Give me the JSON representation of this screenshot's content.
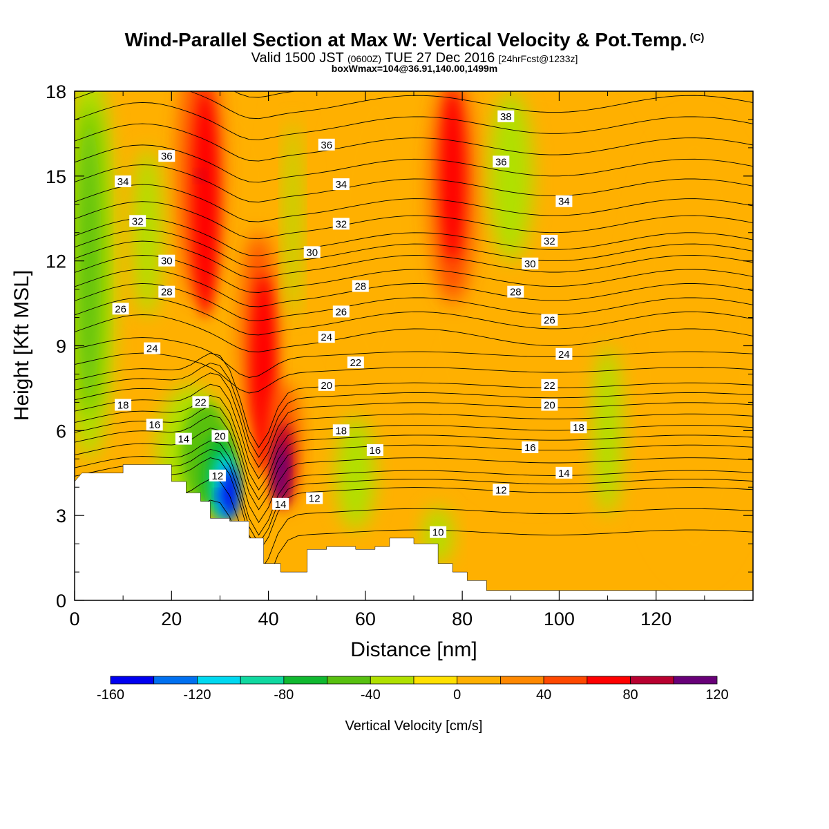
{
  "title": {
    "main": "Wind-Parallel Section at Max W: Vertical Velocity & Pot.Temp.",
    "copyright": "(C)",
    "valid_prefix": "Valid 1500 JST",
    "valid_utc": "(0600Z)",
    "valid_date": "TUE 27 Dec 2016",
    "forecast": "[24hrFcst@1233z]",
    "box_info": "boxWmax=104@36.91,140.00,1499m"
  },
  "chart_data": {
    "type": "heatmap",
    "xlabel": "Distance [nm]",
    "ylabel": "Height [Kft MSL]",
    "xlim": [
      0,
      140
    ],
    "ylim": [
      0,
      18
    ],
    "x_ticks": [
      0,
      20,
      40,
      60,
      80,
      100,
      120
    ],
    "x_tick_labels": [
      "0",
      "20",
      "40",
      "60",
      "80",
      "100",
      "120"
    ],
    "y_ticks": [
      0,
      3,
      6,
      9,
      12,
      15,
      18
    ],
    "y_tick_labels": [
      "0",
      "3",
      "6",
      "9",
      "12",
      "15",
      "18"
    ],
    "colorbar": {
      "label": "Vertical Velocity [cm/s]",
      "levels": [
        -160,
        -140,
        -120,
        -100,
        -80,
        -60,
        -40,
        -20,
        0,
        20,
        40,
        60,
        80,
        100,
        120
      ],
      "tick_values": [
        -160,
        -120,
        -80,
        -40,
        0,
        40,
        80,
        120
      ],
      "tick_labels": [
        "-160",
        "-120",
        "-80",
        "-40",
        "0",
        "40",
        "80",
        "120"
      ],
      "colors": [
        "#0000f0",
        "#0070f0",
        "#00d8f0",
        "#10d8a0",
        "#10b830",
        "#58c010",
        "#b0e000",
        "#ffe000",
        "#ffb000",
        "#ff8800",
        "#ff4800",
        "#ff0000",
        "#b80030",
        "#680078"
      ]
    },
    "terrain_kft": [
      [
        0,
        4.2
      ],
      [
        1.5,
        4.5
      ],
      [
        10,
        4.5
      ],
      [
        10,
        4.8
      ],
      [
        20,
        4.8
      ],
      [
        20,
        4.2
      ],
      [
        23,
        4.2
      ],
      [
        23,
        3.8
      ],
      [
        26,
        3.8
      ],
      [
        26,
        3.5
      ],
      [
        28,
        3.5
      ],
      [
        28,
        2.9
      ],
      [
        32,
        2.9
      ],
      [
        32,
        2.8
      ],
      [
        36,
        2.8
      ],
      [
        36,
        2.2
      ],
      [
        39,
        2.2
      ],
      [
        39,
        1.3
      ],
      [
        42.5,
        1.3
      ],
      [
        42.5,
        1.0
      ],
      [
        48,
        1.0
      ],
      [
        48,
        1.8
      ],
      [
        52,
        1.8
      ],
      [
        52,
        1.9
      ],
      [
        58,
        1.9
      ],
      [
        58,
        1.8
      ],
      [
        62,
        1.8
      ],
      [
        62,
        1.9
      ],
      [
        65,
        1.9
      ],
      [
        65,
        2.2
      ],
      [
        70,
        2.2
      ],
      [
        70,
        2.0
      ],
      [
        75,
        2.0
      ],
      [
        75,
        1.3
      ],
      [
        78,
        1.3
      ],
      [
        78,
        1.0
      ],
      [
        81,
        1.0
      ],
      [
        81,
        0.7
      ],
      [
        85,
        0.7
      ],
      [
        85,
        0.35
      ],
      [
        140,
        0.35
      ]
    ],
    "vertical_velocity_features": [
      {
        "x": 30,
        "y": 3.7,
        "w": -160
      },
      {
        "x": 43,
        "y": 4.8,
        "w": 120
      },
      {
        "x": 26,
        "y": 15,
        "w": 80
      },
      {
        "x": 78,
        "y": 14,
        "w": 60
      },
      {
        "x": 3,
        "y": 12,
        "w": -60
      },
      {
        "x": 24,
        "y": 5.5,
        "w": -60
      },
      {
        "x": 90,
        "y": 14.5,
        "w": -30
      }
    ],
    "potential_temperature_contour_labels": [
      {
        "value": "38",
        "x": 89,
        "y": 17.1
      },
      {
        "value": "36",
        "x": 19,
        "y": 15.7
      },
      {
        "value": "36",
        "x": 52,
        "y": 16.1
      },
      {
        "value": "36",
        "x": 88,
        "y": 15.5
      },
      {
        "value": "34",
        "x": 10,
        "y": 14.8
      },
      {
        "value": "34",
        "x": 55,
        "y": 14.7
      },
      {
        "value": "34",
        "x": 101,
        "y": 14.1
      },
      {
        "value": "32",
        "x": 13,
        "y": 13.4
      },
      {
        "value": "32",
        "x": 55,
        "y": 13.3
      },
      {
        "value": "32",
        "x": 98,
        "y": 12.7
      },
      {
        "value": "30",
        "x": 19,
        "y": 12.0
      },
      {
        "value": "30",
        "x": 49,
        "y": 12.3
      },
      {
        "value": "30",
        "x": 94,
        "y": 11.9
      },
      {
        "value": "28",
        "x": 19,
        "y": 10.9
      },
      {
        "value": "28",
        "x": 59,
        "y": 11.1
      },
      {
        "value": "28",
        "x": 91,
        "y": 10.9
      },
      {
        "value": "26",
        "x": 9.5,
        "y": 10.3
      },
      {
        "value": "26",
        "x": 55,
        "y": 10.2
      },
      {
        "value": "26",
        "x": 98,
        "y": 9.9
      },
      {
        "value": "24",
        "x": 16,
        "y": 8.9
      },
      {
        "value": "24",
        "x": 52,
        "y": 9.3
      },
      {
        "value": "24",
        "x": 101,
        "y": 8.7
      },
      {
        "value": "22",
        "x": 26,
        "y": 7.0
      },
      {
        "value": "22",
        "x": 58,
        "y": 8.4
      },
      {
        "value": "22",
        "x": 98,
        "y": 7.6
      },
      {
        "value": "20",
        "x": 30,
        "y": 5.8
      },
      {
        "value": "20",
        "x": 52,
        "y": 7.6
      },
      {
        "value": "20",
        "x": 98,
        "y": 6.9
      },
      {
        "value": "18",
        "x": 10,
        "y": 6.9
      },
      {
        "value": "18",
        "x": 55,
        "y": 6.0
      },
      {
        "value": "18",
        "x": 104,
        "y": 6.1
      },
      {
        "value": "16",
        "x": 16.5,
        "y": 6.2
      },
      {
        "value": "16",
        "x": 62,
        "y": 5.3
      },
      {
        "value": "16",
        "x": 94,
        "y": 5.4
      },
      {
        "value": "14",
        "x": 22.5,
        "y": 5.7
      },
      {
        "value": "14",
        "x": 42.5,
        "y": 3.4
      },
      {
        "value": "14",
        "x": 101,
        "y": 4.5
      },
      {
        "value": "12",
        "x": 29.5,
        "y": 4.4
      },
      {
        "value": "12",
        "x": 49.5,
        "y": 3.6
      },
      {
        "value": "12",
        "x": 88,
        "y": 3.9
      },
      {
        "value": "10",
        "x": 75,
        "y": 2.4
      }
    ]
  }
}
